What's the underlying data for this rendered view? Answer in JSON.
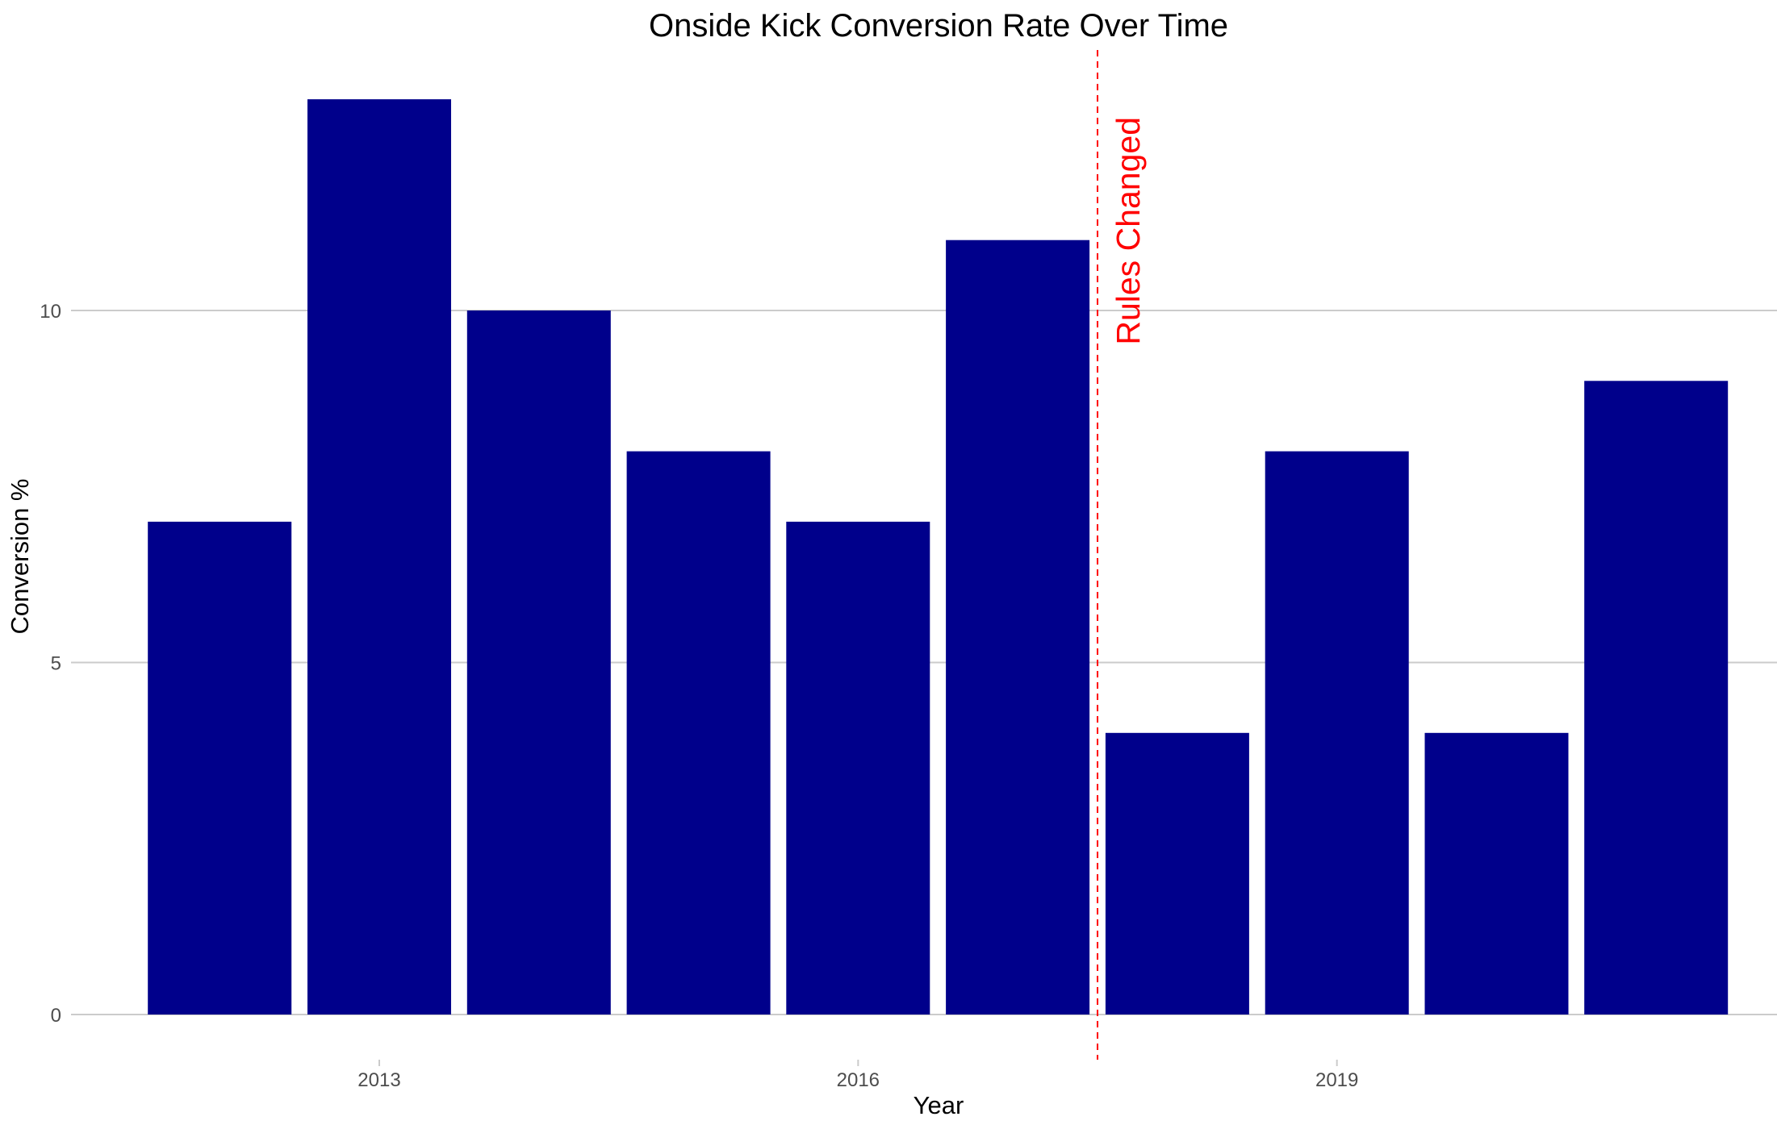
{
  "chart_data": {
    "type": "bar",
    "title": "Onside Kick Conversion Rate Over Time",
    "xlabel": "Year",
    "ylabel": "Conversion %",
    "categories": [
      2012,
      2013,
      2014,
      2015,
      2016,
      2017,
      2018,
      2019,
      2020,
      2021
    ],
    "values": [
      7,
      13,
      10,
      8,
      7,
      11,
      4,
      8,
      4,
      9
    ],
    "x_ticks": [
      2013,
      2016,
      2019
    ],
    "y_ticks": [
      0,
      5,
      10
    ],
    "ylim": [
      0,
      13.65
    ],
    "xlim": [
      2011.4,
      2021.75
    ],
    "grid": "horizontal major lines only",
    "bar_color": "#00008b",
    "annotation": {
      "text": "Rules Changed",
      "x": 2017.5,
      "color": "#ff0000",
      "line_style": "dashed"
    }
  }
}
